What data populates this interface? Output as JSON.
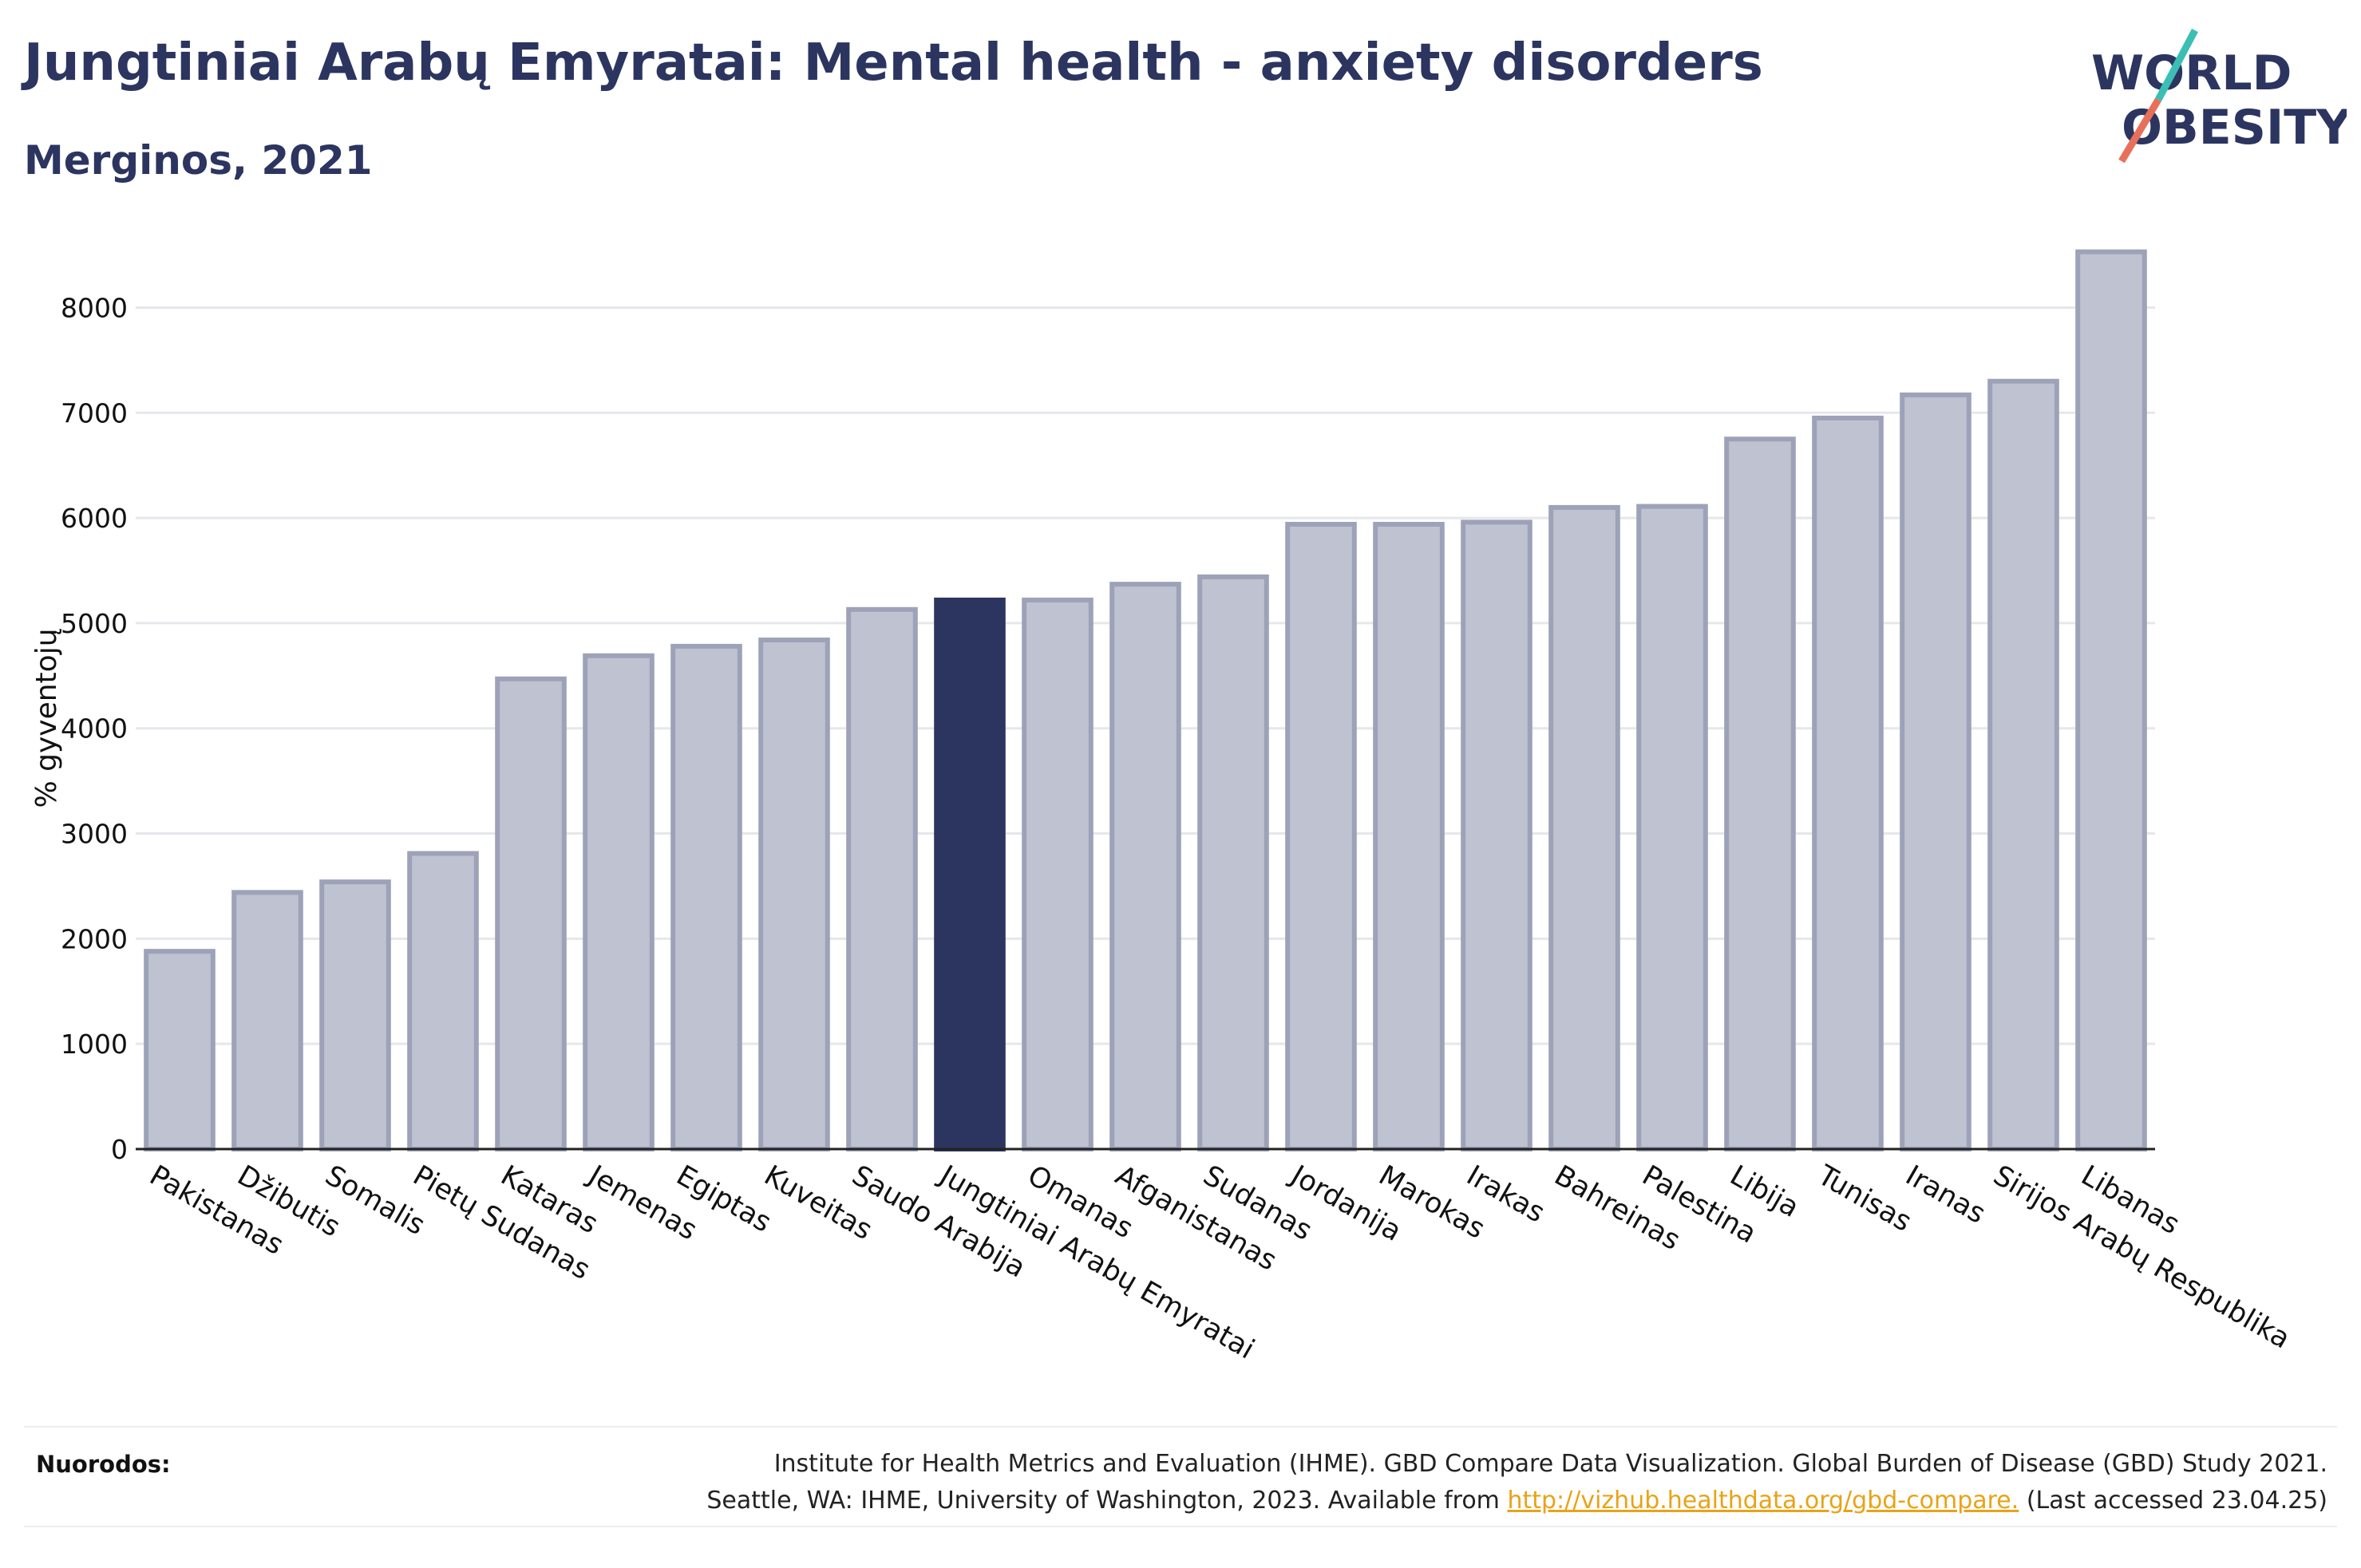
{
  "header": {
    "title": "Jungtiniai Arabų Emyratai: Mental health - anxiety disorders",
    "subtitle": "Merginos, 2021"
  },
  "logo": {
    "line1": "WORLD",
    "line2": "OBESITY",
    "accent_teal": "#3bbfb5",
    "accent_coral": "#e8705a"
  },
  "colors": {
    "bar": "#bfc2d0",
    "bar_stroke": "#9da2b8",
    "highlight": "#2c3560",
    "grid": "#e6e7ec"
  },
  "chart_data": {
    "type": "bar",
    "ylabel": "% gyventojų",
    "xlabel": "",
    "ylim": [
      0,
      8800
    ],
    "yticks": [
      0,
      1000,
      2000,
      3000,
      4000,
      5000,
      6000,
      7000,
      8000
    ],
    "grid": true,
    "highlight": "Jungtiniai Arabų Emyratai",
    "categories": [
      "Pakistanas",
      "Džibutis",
      "Somalis",
      "Pietų Sudanas",
      "Kataras",
      "Jemenas",
      "Egiptas",
      "Kuveitas",
      "Saudo Arabija",
      "Jungtiniai Arabų Emyratai",
      "Omanas",
      "Afganistanas",
      "Sudanas",
      "Jordanija",
      "Marokas",
      "Irakas",
      "Bahreinas",
      "Palestina",
      "Libija",
      "Tunisas",
      "Iranas",
      "Sirijos Arabų Respublika",
      "Libanas"
    ],
    "values": [
      1880,
      2440,
      2540,
      2810,
      4470,
      4690,
      4780,
      4840,
      5130,
      5220,
      5220,
      5370,
      5440,
      5940,
      5940,
      5960,
      6100,
      6110,
      6750,
      6950,
      7170,
      7300,
      8530
    ]
  },
  "footer": {
    "label": "Nuorodos:",
    "line1": "Institute for Health Metrics and Evaluation (IHME). GBD Compare Data Visualization. Global Burden of Disease (GBD) Study 2021.",
    "line2_pre": "Seattle, WA: IHME, University of Washington, 2023. Available from ",
    "link": "http://vizhub.healthdata.org/gbd-compare.",
    "line2_post": " (Last accessed 23.04.25)"
  }
}
